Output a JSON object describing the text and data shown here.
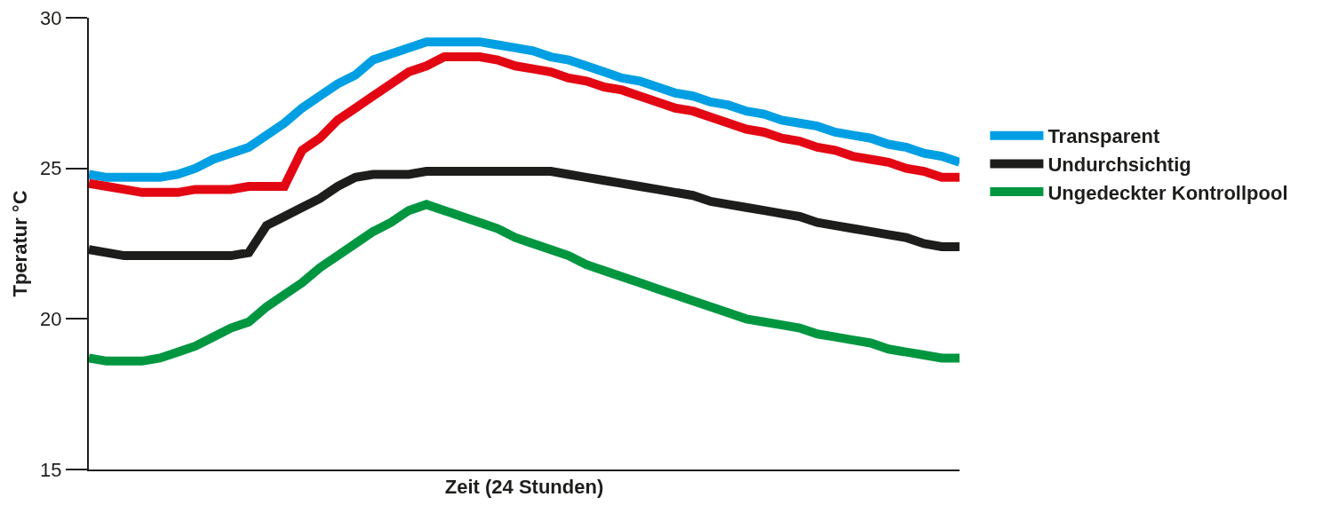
{
  "chart_data": {
    "type": "line",
    "xlabel": "Zeit (24 Stunden)",
    "ylabel": "Tperatur °C",
    "categories": [
      null,
      null,
      null,
      null,
      null,
      null,
      null,
      null,
      null,
      null,
      null,
      null,
      null,
      null,
      null,
      null,
      null,
      null,
      null,
      null,
      null,
      null,
      null,
      null,
      null,
      null,
      null,
      null,
      null,
      null,
      null,
      null,
      null,
      null,
      null,
      null,
      null,
      null,
      null,
      null,
      null,
      null,
      null,
      null,
      null,
      null,
      null,
      null,
      null,
      null
    ],
    "ylim": [
      15,
      30
    ],
    "yticks": [
      15,
      20,
      25,
      30
    ],
    "grid": false,
    "legend": "right",
    "marker": "none",
    "line_style": "solid",
    "series": [
      {
        "name": "Transparent",
        "color": "#009fe3",
        "values": [
          24.8,
          24.7,
          24.7,
          24.7,
          24.7,
          24.8,
          25.0,
          25.3,
          25.5,
          25.7,
          26.1,
          26.5,
          27.0,
          27.4,
          27.8,
          28.1,
          28.6,
          28.8,
          29.0,
          29.2,
          29.2,
          29.2,
          29.2,
          29.1,
          29.0,
          28.9,
          28.7,
          28.6,
          28.4,
          28.2,
          28.0,
          27.9,
          27.7,
          27.5,
          27.4,
          27.2,
          27.1,
          26.9,
          26.8,
          26.6,
          26.5,
          26.4,
          26.2,
          26.1,
          26.0,
          25.8,
          25.7,
          25.5,
          25.4,
          25.2
        ]
      },
      {
        "color": "#e30613",
        "values": [
          24.5,
          24.4,
          24.3,
          24.2,
          24.2,
          24.2,
          24.3,
          24.3,
          24.3,
          24.4,
          24.4,
          24.4,
          25.6,
          26.0,
          26.6,
          27.0,
          27.4,
          27.8,
          28.2,
          28.4,
          28.7,
          28.7,
          28.7,
          28.6,
          28.4,
          28.3,
          28.2,
          28.0,
          27.9,
          27.7,
          27.6,
          27.4,
          27.2,
          27.0,
          26.9,
          26.7,
          26.5,
          26.3,
          26.2,
          26.0,
          25.9,
          25.7,
          25.6,
          25.4,
          25.3,
          25.2,
          25.0,
          24.9,
          24.7,
          24.7
        ]
      },
      {
        "name": "Undurchsichtig",
        "color": "#1d1d1b",
        "values": [
          22.3,
          22.2,
          22.1,
          22.1,
          22.1,
          22.1,
          22.1,
          22.1,
          22.1,
          22.2,
          23.1,
          23.4,
          23.7,
          24.0,
          24.4,
          24.7,
          24.8,
          24.8,
          24.8,
          24.9,
          24.9,
          24.9,
          24.9,
          24.9,
          24.9,
          24.9,
          24.9,
          24.8,
          24.7,
          24.6,
          24.5,
          24.4,
          24.3,
          24.2,
          24.1,
          23.9,
          23.8,
          23.7,
          23.6,
          23.5,
          23.4,
          23.2,
          23.1,
          23.0,
          22.9,
          22.8,
          22.7,
          22.5,
          22.4,
          22.4
        ]
      },
      {
        "name": "Ungedeckter Kontrollpool",
        "color": "#009640",
        "values": [
          18.7,
          18.6,
          18.6,
          18.6,
          18.7,
          18.9,
          19.1,
          19.4,
          19.7,
          19.9,
          20.4,
          20.8,
          21.2,
          21.7,
          22.1,
          22.5,
          22.9,
          23.2,
          23.6,
          23.8,
          23.6,
          23.4,
          23.2,
          23.0,
          22.7,
          22.5,
          22.3,
          22.1,
          21.8,
          21.6,
          21.4,
          21.2,
          21.0,
          20.8,
          20.6,
          20.4,
          20.2,
          20.0,
          19.9,
          19.8,
          19.7,
          19.5,
          19.4,
          19.3,
          19.2,
          19.0,
          18.9,
          18.8,
          18.7,
          18.7
        ]
      }
    ]
  }
}
